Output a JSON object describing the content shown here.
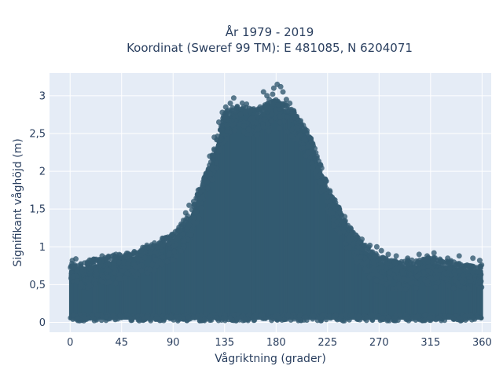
{
  "chart_data": {
    "type": "scatter",
    "title_line1": "År 1979 - 2019",
    "title_line2": "Koordinat (Sweref 99 TM): E 481085, N 6204071",
    "xlabel": "Vågriktning (grader)",
    "ylabel": "Signifikant våghöjd (m)",
    "xlim": [
      -18,
      368
    ],
    "ylim": [
      -0.13,
      3.3
    ],
    "x_ticks": [
      0,
      45,
      90,
      135,
      180,
      225,
      270,
      315,
      360
    ],
    "x_tick_labels": [
      "0",
      "45",
      "90",
      "135",
      "180",
      "225",
      "270",
      "315",
      "360"
    ],
    "y_ticks": [
      0,
      0.5,
      1,
      1.5,
      2,
      2.5,
      3
    ],
    "y_tick_labels": [
      "0",
      "0,5",
      "1",
      "1,5",
      "2",
      "2,5",
      "3"
    ],
    "grid": true,
    "marker_color": "#335a70",
    "plot_background": "#e5ecf6",
    "envelope": {
      "direction_deg": [
        0,
        15,
        30,
        45,
        60,
        75,
        90,
        105,
        120,
        135,
        150,
        165,
        180,
        195,
        210,
        225,
        240,
        255,
        270,
        285,
        300,
        315,
        330,
        345,
        360
      ],
      "max_height_m": [
        0.75,
        0.8,
        0.85,
        0.88,
        0.95,
        1.05,
        1.15,
        1.45,
        2.0,
        2.75,
        2.9,
        2.8,
        2.95,
        2.8,
        2.45,
        1.8,
        1.35,
        1.05,
        0.85,
        0.8,
        0.8,
        0.85,
        0.8,
        0.75,
        0.75
      ]
    },
    "series": [
      {
        "points": [
          [
            2,
            0.82
          ],
          [
            5,
            0.84
          ],
          [
            20,
            0.8
          ],
          [
            28,
            0.88
          ],
          [
            40,
            0.9
          ],
          [
            52,
            0.88
          ],
          [
            62,
            0.95
          ],
          [
            70,
            1.0
          ],
          [
            78,
            1.05
          ],
          [
            85,
            1.1
          ],
          [
            92,
            1.2
          ],
          [
            97,
            1.3
          ],
          [
            101,
            1.45
          ],
          [
            104,
            1.55
          ],
          [
            108,
            1.6
          ],
          [
            112,
            1.75
          ],
          [
            117,
            1.9
          ],
          [
            122,
            2.2
          ],
          [
            126,
            2.45
          ],
          [
            130,
            2.65
          ],
          [
            133,
            2.78
          ],
          [
            136,
            2.85
          ],
          [
            140,
            2.9
          ],
          [
            143,
            2.97
          ],
          [
            146,
            2.85
          ],
          [
            149,
            2.75
          ],
          [
            152,
            2.6
          ],
          [
            156,
            2.55
          ],
          [
            160,
            2.7
          ],
          [
            163,
            2.75
          ],
          [
            166,
            2.85
          ],
          [
            169,
            3.05
          ],
          [
            172,
            3.0
          ],
          [
            174,
            2.95
          ],
          [
            177,
            3.02
          ],
          [
            178,
            3.1
          ],
          [
            181,
            3.15
          ],
          [
            184,
            3.12
          ],
          [
            186,
            3.05
          ],
          [
            189,
            2.95
          ],
          [
            192,
            2.9
          ],
          [
            195,
            2.75
          ],
          [
            198,
            2.7
          ],
          [
            202,
            2.6
          ],
          [
            205,
            2.55
          ],
          [
            208,
            2.25
          ],
          [
            212,
            2.05
          ],
          [
            215,
            2.0
          ],
          [
            219,
            1.85
          ],
          [
            222,
            1.75
          ],
          [
            225,
            1.6
          ],
          [
            229,
            1.55
          ],
          [
            232,
            1.5
          ],
          [
            236,
            1.45
          ],
          [
            240,
            1.4
          ],
          [
            245,
            1.25
          ],
          [
            250,
            1.15
          ],
          [
            255,
            1.1
          ],
          [
            262,
            1.02
          ],
          [
            268,
            1.0
          ],
          [
            272,
            0.95
          ],
          [
            278,
            0.9
          ],
          [
            285,
            0.88
          ],
          [
            295,
            0.85
          ],
          [
            305,
            0.9
          ],
          [
            312,
            0.88
          ],
          [
            318,
            0.92
          ],
          [
            330,
            0.85
          ],
          [
            340,
            0.88
          ],
          [
            352,
            0.85
          ],
          [
            358,
            0.82
          ]
        ]
      }
    ]
  }
}
